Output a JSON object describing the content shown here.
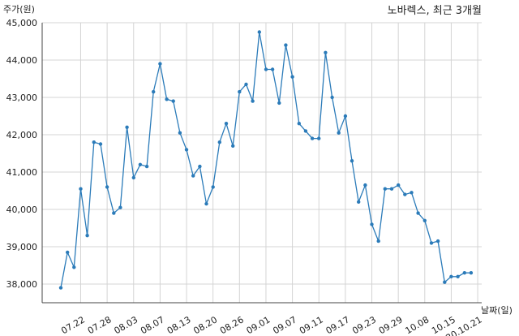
{
  "chart_data": {
    "type": "line",
    "title": "노바렉스, 최근 3개월",
    "ylabel": "주가(원)",
    "xlabel": "날짜(일)",
    "ylim": [
      37500,
      45000
    ],
    "yticks": [
      "38,000",
      "39,000",
      "40,000",
      "41,000",
      "42,000",
      "43,000",
      "44,000",
      "45,000"
    ],
    "ytick_values": [
      38000,
      39000,
      40000,
      41000,
      42000,
      43000,
      44000,
      45000
    ],
    "xtick_labels": [
      "07.22",
      "07.28",
      "08.03",
      "08.07",
      "08.13",
      "08.20",
      "08.26",
      "09.01",
      "09.07",
      "09.11",
      "09.17",
      "09.23",
      "09.29",
      "10.08",
      "10.15",
      "20.10.21"
    ],
    "xtick_index": [
      3,
      7,
      11,
      15,
      19,
      23,
      27,
      31,
      35,
      39,
      43,
      47,
      51,
      55,
      59,
      63
    ],
    "grid": true,
    "color": "#2b7bb9",
    "series": [
      {
        "values": [
          37900,
          38850,
          38450,
          40550,
          39300,
          41800,
          41750,
          40600,
          39900,
          40050,
          42200,
          40850,
          41200,
          41150,
          43150,
          43900,
          42950,
          42900,
          42050,
          41600,
          40900,
          41150,
          40150,
          40600,
          41800,
          42300,
          41700,
          43150,
          43350,
          42900,
          44750,
          43750,
          43750,
          42850,
          44400,
          43550,
          42300,
          42100,
          41900,
          41900,
          44200,
          43000,
          42050,
          42500,
          41300,
          40200,
          40650,
          39600,
          39150,
          40550,
          40550,
          40650,
          40400,
          40450,
          39900,
          39700,
          39100,
          39150,
          38050,
          38200,
          38200,
          38300,
          38300
        ]
      }
    ]
  }
}
